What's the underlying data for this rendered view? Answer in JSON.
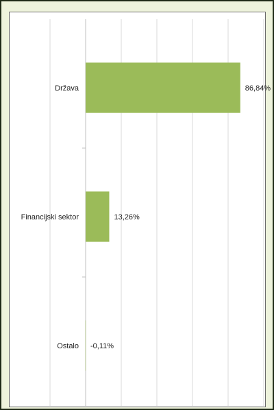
{
  "chart_data": {
    "type": "bar",
    "orientation": "horizontal",
    "categories": [
      "Država",
      "Financijski sektor",
      "Ostalo"
    ],
    "values": [
      86.84,
      13.26,
      -0.11
    ],
    "data_labels": [
      "86,84%",
      "13,26%",
      "-0,11%"
    ],
    "title": "",
    "xlabel": "",
    "ylabel": "",
    "xlim": [
      -20,
      100
    ],
    "grid": true,
    "legend": "none",
    "colors": {
      "bar": "#9bbb59",
      "gridline": "#d9d9d9",
      "axis": "#bfbfbf",
      "panel_background": "#eef3dc",
      "panel_border": "#1f2a17"
    }
  }
}
